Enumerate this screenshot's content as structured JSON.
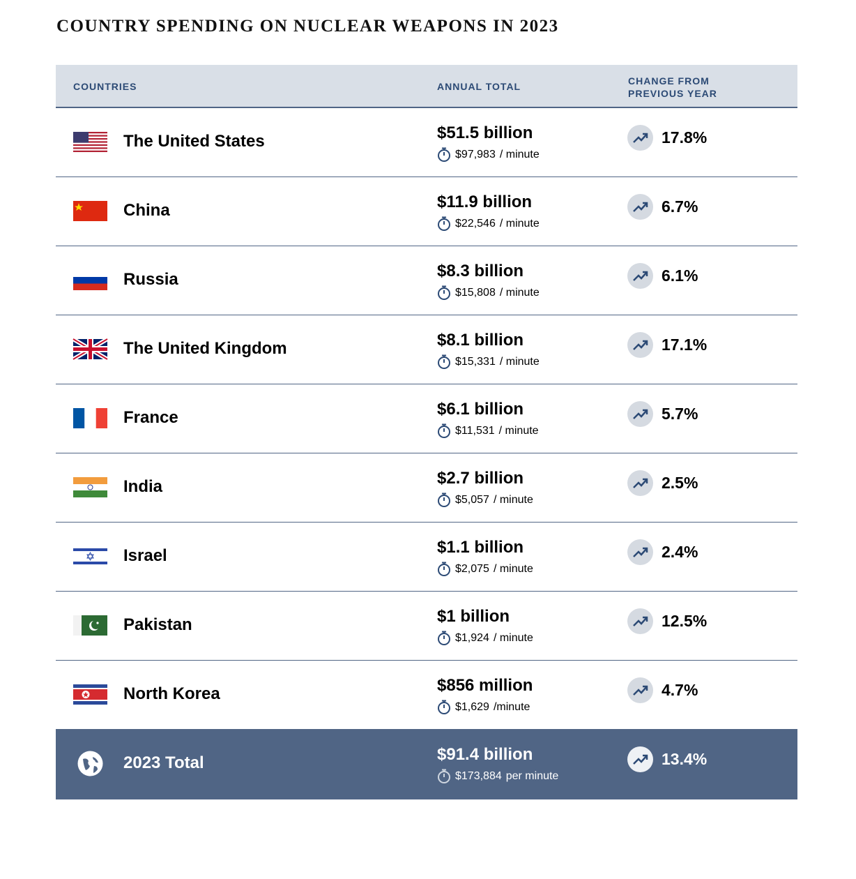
{
  "title": "COUNTRY SPENDING ON NUCLEAR WEAPONS IN 2023",
  "table": {
    "headers": [
      "COUNTRIES",
      "ANNUAL TOTAL",
      "CHANGE FROM PREVIOUS YEAR"
    ],
    "rows": [
      {
        "country": "The United States",
        "total": "$51.5 billion",
        "per_minute": "$97,983",
        "per_minute_unit": "/ minute",
        "change": "17.8%"
      },
      {
        "country": "China",
        "total": "$11.9 billion",
        "per_minute": "$22,546",
        "per_minute_unit": "/ minute",
        "change": "6.7%"
      },
      {
        "country": "Russia",
        "total": "$8.3 billion",
        "per_minute": "$15,808",
        "per_minute_unit": "/ minute",
        "change": "6.1%"
      },
      {
        "country": "The United Kingdom",
        "total": "$8.1 billion",
        "per_minute": "$15,331",
        "per_minute_unit": "/ minute",
        "change": "17.1%"
      },
      {
        "country": "France",
        "total": "$6.1 billion",
        "per_minute": "$11,531",
        "per_minute_unit": "/ minute",
        "change": "5.7%"
      },
      {
        "country": "India",
        "total": "$2.7 billion",
        "per_minute": "$5,057",
        "per_minute_unit": "/ minute",
        "change": "2.5%"
      },
      {
        "country": "Israel",
        "total": "$1.1 billion",
        "per_minute": "$2,075",
        "per_minute_unit": "/ minute",
        "change": "2.4%"
      },
      {
        "country": "Pakistan",
        "total": "$1 billion",
        "per_minute": "$1,924",
        "per_minute_unit": "/ minute",
        "change": "12.5%"
      },
      {
        "country": "North Korea",
        "total": "$856 million",
        "per_minute": "$1,629",
        "per_minute_unit": "/minute",
        "change": "4.7%"
      }
    ],
    "total_row": {
      "country": "2023 Total",
      "total": "$91.4 billion",
      "per_minute": "$173,884",
      "per_minute_unit": "per minute",
      "change": "13.4%"
    }
  }
}
